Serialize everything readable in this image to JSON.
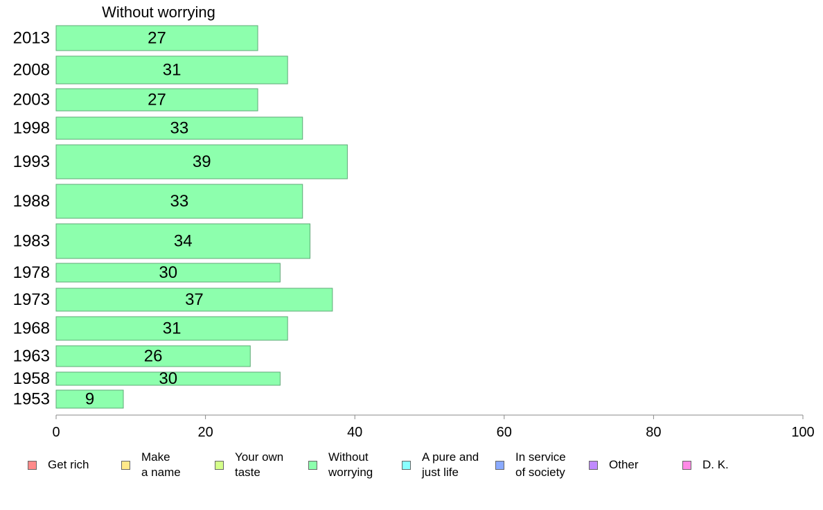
{
  "chart_data": {
    "type": "bar",
    "orientation": "horizontal",
    "title": "Without worrying",
    "categories": [
      "2013",
      "2008",
      "2003",
      "1998",
      "1993",
      "1988",
      "1983",
      "1978",
      "1973",
      "1968",
      "1963",
      "1958",
      "1953"
    ],
    "values": [
      27,
      31,
      27,
      33,
      39,
      33,
      34,
      30,
      37,
      31,
      26,
      30,
      9
    ],
    "bar_color": "#8dffad",
    "bar_border_color": "#5fa877",
    "xlim": [
      0,
      100
    ],
    "xticks": [
      "0",
      "20",
      "40",
      "60",
      "80",
      "100"
    ],
    "grid": false,
    "legend_position": "bottom",
    "legend": [
      {
        "label": "Get rich",
        "color": "#ff8a8a"
      },
      {
        "label": "Make\na name",
        "color": "#ffe98a"
      },
      {
        "label": "Your own\ntaste",
        "color": "#d4ff8a"
      },
      {
        "label": "Without\nworrying",
        "color": "#8dffad"
      },
      {
        "label": "A pure and\njust life",
        "color": "#8affff"
      },
      {
        "label": "In service\nof society",
        "color": "#8aaaff"
      },
      {
        "label": "Other",
        "color": "#c08aff"
      },
      {
        "label": "D. K.",
        "color": "#ff8ae6"
      }
    ]
  }
}
